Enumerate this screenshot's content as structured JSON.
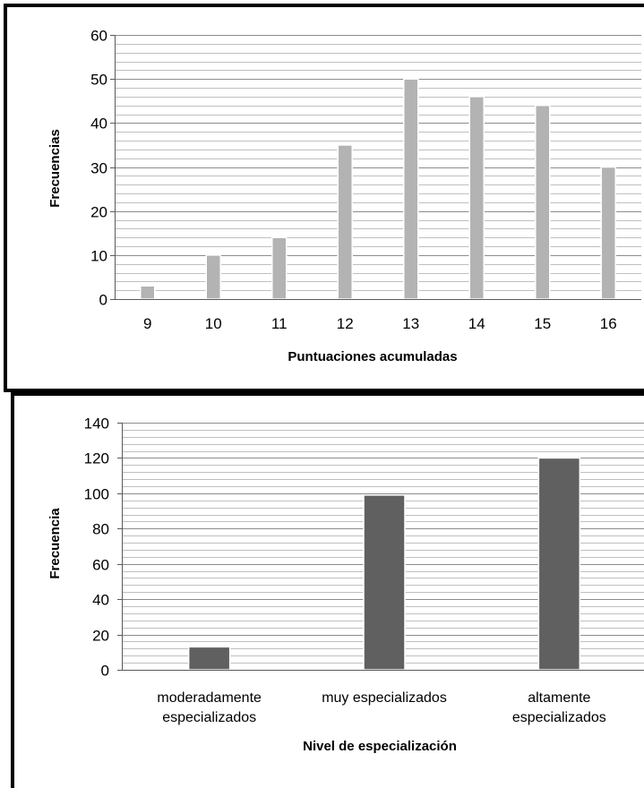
{
  "chart_data": [
    {
      "type": "bar",
      "title": "",
      "xlabel": "Puntuaciones acumuladas",
      "ylabel": "Frecuencias",
      "categories": [
        "9",
        "10",
        "11",
        "12",
        "13",
        "14",
        "15",
        "16"
      ],
      "values": [
        3,
        10,
        14,
        35,
        50,
        46,
        44,
        30
      ],
      "yticks": [
        "0",
        "10",
        "20",
        "30",
        "40",
        "50",
        "60"
      ],
      "ylim": [
        0,
        60
      ],
      "minor_grid_step": 2,
      "grid": true,
      "legend": "none",
      "bar_color": "#b3b3b3"
    },
    {
      "type": "bar",
      "title": "",
      "xlabel": "Nivel de especialización",
      "ylabel": "Frecuencia",
      "categories": [
        [
          "moderadamente",
          "especializados"
        ],
        [
          "muy especializados"
        ],
        [
          "altamente",
          "especializados"
        ]
      ],
      "values": [
        13,
        99,
        120
      ],
      "yticks": [
        "0",
        "20",
        "40",
        "60",
        "80",
        "100",
        "120",
        "140"
      ],
      "ylim": [
        0,
        140
      ],
      "minor_grid_step": 4,
      "grid": true,
      "legend": "none",
      "bar_color": "#606060"
    }
  ]
}
